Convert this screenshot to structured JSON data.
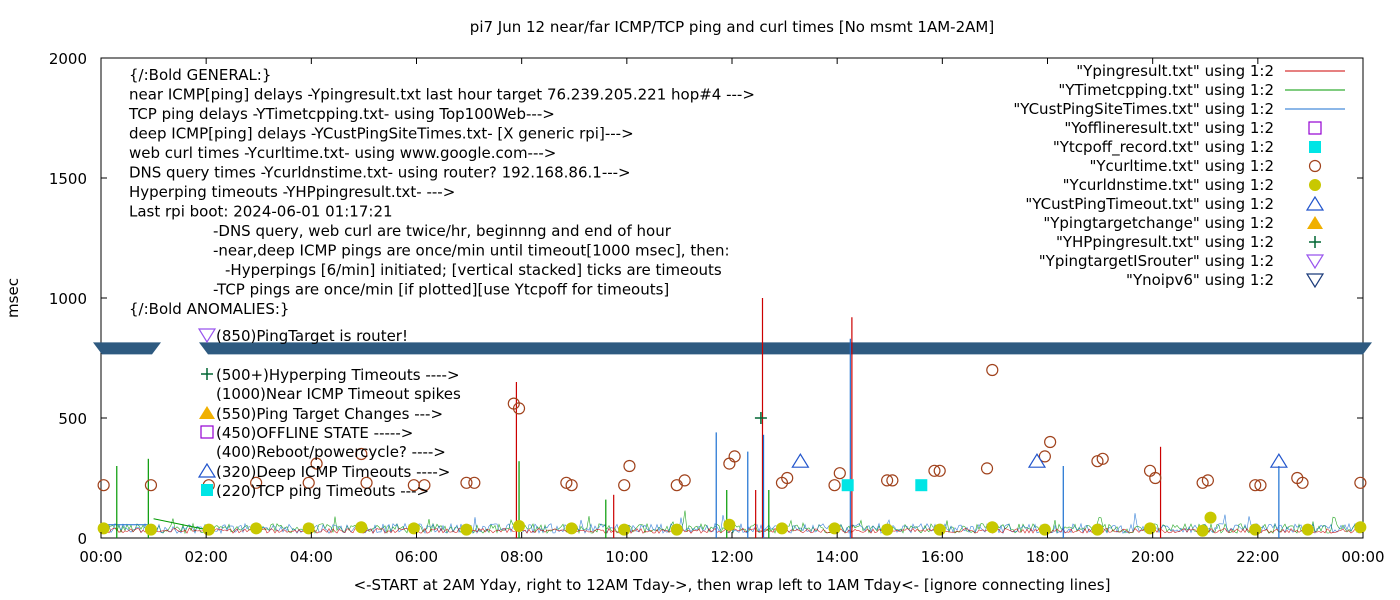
{
  "chart_data": {
    "type": "line",
    "title": "pi7 Jun 12  near/far ICMP/TCP ping and curl times [No msmt 1AM-2AM]",
    "xlabel": "<-START at 2AM Yday, right to 12AM Tday->, then wrap left to 1AM Tday<- [ignore connecting lines]",
    "ylabel": "msec",
    "xlim": [
      0,
      24
    ],
    "ylim": [
      0,
      2000
    ],
    "x_ticks": [
      "00:00",
      "02:00",
      "04:00",
      "06:00",
      "08:00",
      "10:00",
      "12:00",
      "14:00",
      "16:00",
      "18:00",
      "20:00",
      "22:00",
      "00:00"
    ],
    "y_ticks": [
      "0",
      "500",
      "1000",
      "1500",
      "2000"
    ],
    "grid": false,
    "legend_placement": "top-right",
    "colors": {
      "ping": "#cc0000",
      "tcp": "#009900",
      "deep": "#1a6fd1",
      "offline": "#9400d3",
      "tcpoff": "#00e5e5",
      "curl": "#a0421c",
      "dns": "#c8c800",
      "custtimeout": "#2255cc",
      "targetchange": "#f0b000",
      "hpping": "#006633",
      "router": "#9955ee",
      "noipv6": "#1a3a7a",
      "band": "#2e5a80"
    },
    "legend": [
      {
        "label": "\"Ypingresult.txt\" using 1:2",
        "marker": "line",
        "color": "#cc0000"
      },
      {
        "label": "\"YTimetcpping.txt\" using 1:2",
        "marker": "line",
        "color": "#009900"
      },
      {
        "label": "\"YCustPingSiteTimes.txt\" using 1:2",
        "marker": "line",
        "color": "#1a6fd1"
      },
      {
        "label": "\"Yofflineresult.txt\" using 1:2",
        "marker": "open-square",
        "color": "#9400d3"
      },
      {
        "label": "\"Ytcpoff_record.txt\" using 1:2",
        "marker": "filled-square",
        "color": "#00e5e5"
      },
      {
        "label": "\"Ycurltime.txt\" using 1:2",
        "marker": "open-circle",
        "color": "#a0421c"
      },
      {
        "label": "\"Ycurldnstime.txt\" using 1:2",
        "marker": "filled-circle",
        "color": "#c8c800"
      },
      {
        "label": "\"YCustPingTimeout.txt\" using 1:2",
        "marker": "open-triangle",
        "color": "#2255cc"
      },
      {
        "label": "\"Ypingtargetchange\" using 1:2",
        "marker": "filled-triangle",
        "color": "#f0b000"
      },
      {
        "label": "\"YHPpingresult.txt\" using 1:2",
        "marker": "plus",
        "color": "#006633"
      },
      {
        "label": "\"YpingtargetISrouter\" using 1:2",
        "marker": "open-down-triangle",
        "color": "#9955ee"
      },
      {
        "label": "\"Ynoipv6\" using 1:2",
        "marker": "open-down-triangle",
        "color": "#1a3a7a"
      }
    ],
    "notes": [
      "{/:Bold GENERAL:}",
      "near ICMP[ping] delays -Ypingresult.txt last hour target 76.239.205.221 hop#4 --->",
      "TCP ping delays -YTimetcpping.txt- using Top100Web--->",
      "deep ICMP[ping] delays -YCustPingSiteTimes.txt- [X generic rpi]--->",
      "web curl times -Ycurltime.txt- using www.google.com--->",
      "DNS query times -Ycurldnstime.txt- using router? 192.168.86.1--->",
      "Hyperping timeouts -YHPpingresult.txt- --->",
      "Last rpi boot: 2024-06-01 01:17:21",
      "-DNS query, web curl are twice/hr, beginnng and end of hour",
      "-near,deep ICMP pings are once/min until timeout[1000 msec], then:",
      "-Hyperpings [6/min] initiated; [vertical stacked] ticks are timeouts",
      "-TCP pings are once/min [if plotted][use Ytcpoff for timeouts]",
      "{/:Bold ANOMALIES:}"
    ],
    "anomalies": [
      {
        "text": "(850)PingTarget is router!",
        "marker": "open-down-triangle",
        "color": "#9955ee"
      },
      {
        "text": "(500+)Hyperping Timeouts ---->",
        "marker": "plus",
        "color": "#006633"
      },
      {
        "text": "(1000)Near ICMP Timeout spikes",
        "marker": "none",
        "color": "#000000"
      },
      {
        "text": "(550)Ping Target Changes --->",
        "marker": "filled-triangle",
        "color": "#f0b000"
      },
      {
        "text": "(450)OFFLINE STATE ----->",
        "marker": "open-square",
        "color": "#9400d3"
      },
      {
        "text": "(400)Reboot/powercycle? ---->",
        "marker": "none",
        "color": "#000000"
      },
      {
        "text": "(320)Deep ICMP Timeouts ---->",
        "marker": "open-triangle",
        "color": "#2255cc"
      },
      {
        "text": "(220)TCP ping Timeouts --->",
        "marker": "filled-square",
        "color": "#00e5e5"
      }
    ],
    "series": [
      {
        "name": "\"Ycurltime.txt\" using 1:2",
        "kind": "open-circle",
        "x": [
          0.05,
          0.95,
          2.05,
          2.95,
          3.95,
          4.1,
          4.95,
          5.05,
          5.95,
          6.15,
          6.95,
          7.1,
          7.85,
          7.95,
          8.85,
          8.95,
          9.95,
          10.05,
          10.95,
          11.1,
          11.95,
          12.05,
          12.95,
          13.05,
          13.95,
          14.05,
          14.95,
          15.05,
          15.85,
          15.95,
          16.85,
          16.95,
          17.95,
          18.05,
          18.95,
          19.05,
          19.95,
          20.05,
          20.95,
          21.05,
          21.95,
          22.05,
          22.75,
          22.85,
          23.95
        ],
        "y": [
          220,
          220,
          220,
          230,
          230,
          310,
          350,
          230,
          220,
          220,
          230,
          230,
          560,
          540,
          230,
          220,
          220,
          300,
          220,
          240,
          310,
          340,
          230,
          250,
          220,
          270,
          240,
          240,
          280,
          280,
          290,
          700,
          340,
          400,
          320,
          330,
          280,
          250,
          230,
          240,
          220,
          220,
          250,
          230,
          230
        ]
      },
      {
        "name": "\"Ycurldnstime.txt\" using 1:2",
        "kind": "filled-circle",
        "x": [
          0.05,
          0.95,
          2.05,
          2.95,
          3.95,
          4.95,
          5.95,
          6.95,
          7.95,
          8.95,
          9.95,
          10.95,
          11.95,
          12.95,
          13.95,
          14.95,
          15.95,
          16.95,
          17.95,
          18.95,
          19.95,
          20.95,
          21.1,
          21.95,
          22.95,
          23.95
        ],
        "y": [
          40,
          35,
          35,
          40,
          40,
          45,
          40,
          35,
          50,
          40,
          35,
          35,
          55,
          40,
          40,
          35,
          35,
          45,
          35,
          35,
          40,
          30,
          85,
          35,
          35,
          45
        ]
      },
      {
        "name": "\"YCustPingTimeout.txt\" using 1:2",
        "kind": "open-triangle",
        "x": [
          13.3,
          17.8,
          22.4
        ],
        "y": [
          320,
          320,
          320
        ]
      },
      {
        "name": "\"Ytcpoff_record.txt\" using 1:2",
        "kind": "filled-square",
        "x": [
          14.2,
          15.6
        ],
        "y": [
          220,
          220
        ]
      },
      {
        "name": "\"YHPpingresult.txt\" using 1:2",
        "kind": "plus",
        "x": [
          12.55
        ],
        "y": [
          500
        ]
      },
      {
        "name": "\"Ypingresult.txt\" using 1:2",
        "kind": "spike",
        "x": [
          7.9,
          12.58,
          14.28,
          20.15,
          9.75,
          12.45
        ],
        "y": [
          650,
          1000,
          920,
          380,
          180,
          200
        ]
      },
      {
        "name": "\"YCustPingSiteTimes.txt\" using 1:2",
        "kind": "spike",
        "x": [
          11.7,
          12.3,
          12.6,
          14.25,
          18.3,
          22.4
        ],
        "y": [
          440,
          360,
          430,
          830,
          300,
          300
        ]
      },
      {
        "name": "\"YTimetcpping.txt\" using 1:2",
        "kind": "spike",
        "x": [
          0.3,
          0.9,
          7.95,
          9.6,
          11.9,
          12.7
        ],
        "y": [
          300,
          330,
          320,
          160,
          200,
          200
        ]
      }
    ]
  }
}
